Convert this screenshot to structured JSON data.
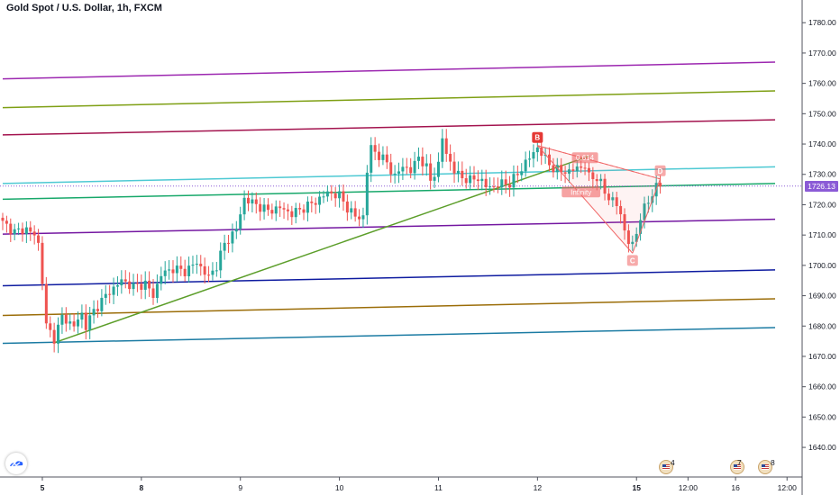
{
  "chart_data": {
    "type": "candlestick",
    "title": "Gold Spot / U.S. Dollar, 1h, FXCM",
    "symbol": "Gold Spot / U.S. Dollar",
    "interval": "1h",
    "source": "FXCM",
    "price_axis_position": "right",
    "y_range": [
      1633.5,
      1786.0
    ],
    "y_ticks": [
      1640,
      1650,
      1660,
      1670,
      1680,
      1690,
      1700,
      1710,
      1720,
      1730,
      1740,
      1750,
      1760,
      1770,
      1780
    ],
    "y_tick_labels": [
      "1640.00",
      "1650.00",
      "1660.00",
      "1670.00",
      "1680.00",
      "1690.00",
      "1700.00",
      "1710.00",
      "1720.00",
      "1730.00",
      "1740.00",
      "1750.00",
      "1760.00",
      "1770.00",
      "1780.00"
    ],
    "x_range_index": [
      0,
      195
    ],
    "x_tick_labels": [
      {
        "label": "5",
        "index": 5
      },
      {
        "label": "8",
        "index": 30
      },
      {
        "label": "9",
        "index": 55
      },
      {
        "label": "10",
        "index": 80
      },
      {
        "label": "11",
        "index": 105
      },
      {
        "label": "12",
        "index": 130
      },
      {
        "label": "15",
        "index": 155
      },
      {
        "label": "12:00",
        "index": 168
      },
      {
        "label": "16",
        "index": 180
      },
      {
        "label": "12:00",
        "index": 193
      }
    ],
    "last_price": 1726.13,
    "last_price_label": "1726.13",
    "colors": {
      "up": "#26a69a",
      "down": "#ef5350",
      "last_price": "#8b5bd6"
    },
    "candle_keypoints": [
      [
        0,
        1714
      ],
      [
        3,
        1711
      ],
      [
        6,
        1712
      ],
      [
        8,
        1710
      ],
      [
        9,
        1707
      ],
      [
        10,
        1695
      ],
      [
        11,
        1680
      ],
      [
        13,
        1676
      ],
      [
        15,
        1683
      ],
      [
        18,
        1680
      ],
      [
        20,
        1684
      ],
      [
        21,
        1680
      ],
      [
        23,
        1685
      ],
      [
        26,
        1690
      ],
      [
        30,
        1695
      ],
      [
        33,
        1693
      ],
      [
        36,
        1694
      ],
      [
        38,
        1690
      ],
      [
        40,
        1697
      ],
      [
        43,
        1699
      ],
      [
        46,
        1698
      ],
      [
        49,
        1701
      ],
      [
        52,
        1696
      ],
      [
        54,
        1700
      ],
      [
        56,
        1707
      ],
      [
        59,
        1712
      ],
      [
        61,
        1722
      ],
      [
        64,
        1720
      ],
      [
        67,
        1718
      ],
      [
        70,
        1719
      ],
      [
        73,
        1717
      ],
      [
        76,
        1719
      ],
      [
        79,
        1721
      ],
      [
        82,
        1724
      ],
      [
        85,
        1723
      ],
      [
        87,
        1719
      ],
      [
        89,
        1716
      ],
      [
        91,
        1716
      ],
      [
        92,
        1731
      ],
      [
        93,
        1739
      ],
      [
        95,
        1736
      ],
      [
        97,
        1734
      ],
      [
        99,
        1729
      ],
      [
        101,
        1733
      ],
      [
        103,
        1731
      ],
      [
        105,
        1736
      ],
      [
        107,
        1732
      ],
      [
        108,
        1728
      ],
      [
        110,
        1733
      ],
      [
        111,
        1742
      ],
      [
        112,
        1737
      ],
      [
        114,
        1731
      ],
      [
        116,
        1729
      ],
      [
        118,
        1728
      ],
      [
        120,
        1729
      ],
      [
        122,
        1726
      ],
      [
        124,
        1726
      ],
      [
        126,
        1727
      ],
      [
        128,
        1727
      ],
      [
        130,
        1730
      ],
      [
        132,
        1734
      ],
      [
        134,
        1737
      ],
      [
        135,
        1739
      ],
      [
        136,
        1737
      ],
      [
        137,
        1735
      ],
      [
        139,
        1732
      ],
      [
        141,
        1731
      ],
      [
        143,
        1731
      ],
      [
        145,
        1732
      ],
      [
        147,
        1733
      ],
      [
        148,
        1729
      ],
      [
        150,
        1729
      ],
      [
        151,
        1727
      ],
      [
        152,
        1724
      ],
      [
        153,
        1722
      ],
      [
        154,
        1722
      ],
      [
        155,
        1720
      ],
      [
        156,
        1716
      ],
      [
        157,
        1712
      ],
      [
        158,
        1708
      ],
      [
        159,
        1706
      ],
      [
        160,
        1711
      ],
      [
        161,
        1716
      ],
      [
        162,
        1719
      ],
      [
        164,
        1723
      ],
      [
        165,
        1727
      ],
      [
        166,
        1726
      ]
    ],
    "candle_wick": 1.6,
    "trend_lines": [
      {
        "color": "#9c27b0",
        "x1": 0,
        "y1": 1761.5,
        "x2": 195,
        "y2": 1767.0
      },
      {
        "color": "#7e9f13",
        "x1": 0,
        "y1": 1752.0,
        "x2": 195,
        "y2": 1757.5
      },
      {
        "color": "#a3134e",
        "x1": 0,
        "y1": 1743.0,
        "x2": 195,
        "y2": 1748.0
      },
      {
        "color": "#4dc9d3",
        "x1": 0,
        "y1": 1727.0,
        "x2": 195,
        "y2": 1732.5
      },
      {
        "color": "#17a86a",
        "x1": 0,
        "y1": 1721.8,
        "x2": 195,
        "y2": 1727.0
      },
      {
        "color": "#7417a1",
        "x1": 0,
        "y1": 1710.3,
        "x2": 195,
        "y2": 1715.2
      },
      {
        "color": "#0e1ba0",
        "x1": 0,
        "y1": 1693.3,
        "x2": 195,
        "y2": 1698.5
      },
      {
        "color": "#9b6d08",
        "x1": 0,
        "y1": 1683.5,
        "x2": 195,
        "y2": 1689.0
      },
      {
        "color": "#1b7ba3",
        "x1": 0,
        "y1": 1674.3,
        "x2": 195,
        "y2": 1679.5
      },
      {
        "color": "#5c9e2a",
        "x1": 13,
        "y1": 1674.5,
        "x2": 148,
        "y2": 1736.0
      }
    ],
    "harmonic_pattern": {
      "color": "#f06565",
      "points": [
        {
          "label": "B",
          "x": 135,
          "y": 1739.5
        },
        {
          "label": "C",
          "x": 159,
          "y": 1704.0
        },
        {
          "label": "D",
          "x": 166,
          "y": 1728.5
        }
      ],
      "ratios": [
        {
          "label": "0.614",
          "x": 147,
          "y": 1735.5
        },
        {
          "label": "Infinity",
          "x": 146,
          "y": 1724.2
        }
      ]
    }
  },
  "event_badges": [
    {
      "count": "4"
    },
    {
      "count": "7"
    },
    {
      "count": "8"
    }
  ]
}
